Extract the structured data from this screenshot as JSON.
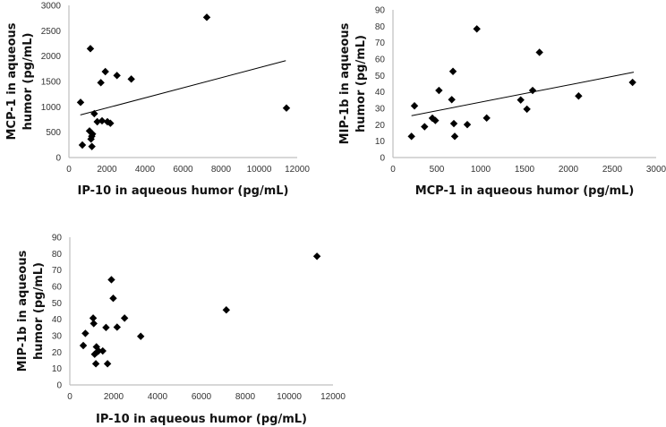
{
  "chart_data": [
    {
      "type": "scatter",
      "id": "chart1",
      "title": "",
      "xlabel": "IP-10 in aqueous humor  (pg/mL)",
      "ylabel_lines": [
        "MCP-1 in aqueous",
        "humor  (pg/mL)"
      ],
      "xlim": [
        0,
        12000
      ],
      "ylim": [
        0,
        3000
      ],
      "xticks": [
        0,
        2000,
        4000,
        6000,
        8000,
        10000,
        12000
      ],
      "yticks": [
        0,
        500,
        1000,
        1500,
        2000,
        2500,
        3000
      ],
      "marker": "diamond",
      "grid": false,
      "legend": "none",
      "trendline": {
        "x": [
          600,
          11400
        ],
        "y": [
          840,
          1910
        ]
      },
      "points": [
        {
          "x": 612,
          "y": 1088
        },
        {
          "x": 706,
          "y": 247
        },
        {
          "x": 1082,
          "y": 524
        },
        {
          "x": 1129,
          "y": 2147
        },
        {
          "x": 1161,
          "y": 365
        },
        {
          "x": 1208,
          "y": 218
        },
        {
          "x": 1200,
          "y": 420
        },
        {
          "x": 1239,
          "y": 465
        },
        {
          "x": 1333,
          "y": 865
        },
        {
          "x": 1490,
          "y": 706
        },
        {
          "x": 1678,
          "y": 1476
        },
        {
          "x": 1741,
          "y": 724
        },
        {
          "x": 1914,
          "y": 1694
        },
        {
          "x": 2024,
          "y": 706
        },
        {
          "x": 2180,
          "y": 676
        },
        {
          "x": 2525,
          "y": 1618
        },
        {
          "x": 3278,
          "y": 1547
        },
        {
          "x": 7247,
          "y": 2765
        },
        {
          "x": 11435,
          "y": 976
        }
      ]
    },
    {
      "type": "scatter",
      "id": "chart2",
      "title": "",
      "xlabel": "MCP-1 in aqueous humor  (pg/mL)",
      "ylabel_lines": [
        "MIP-1b in aqueous",
        "humor  (pg/mL)"
      ],
      "xlim": [
        0,
        3000
      ],
      "ylim": [
        0,
        90
      ],
      "xticks": [
        0,
        500,
        1000,
        1500,
        2000,
        2500,
        3000
      ],
      "yticks": [
        0,
        10,
        20,
        30,
        40,
        50,
        60,
        70,
        80,
        90
      ],
      "marker": "diamond",
      "grid": false,
      "legend": "none",
      "trendline": {
        "x": [
          211,
          2745
        ],
        "y": [
          25.5,
          52
        ]
      },
      "points": [
        {
          "x": 211,
          "y": 12.9
        },
        {
          "x": 245,
          "y": 31.5
        },
        {
          "x": 360,
          "y": 18.8
        },
        {
          "x": 449,
          "y": 24
        },
        {
          "x": 483,
          "y": 22.6
        },
        {
          "x": 524,
          "y": 40.9
        },
        {
          "x": 670,
          "y": 35.3
        },
        {
          "x": 684,
          "y": 52.5
        },
        {
          "x": 694,
          "y": 20.7
        },
        {
          "x": 704,
          "y": 12.9
        },
        {
          "x": 847,
          "y": 20.1
        },
        {
          "x": 956,
          "y": 78.4
        },
        {
          "x": 1068,
          "y": 24.1
        },
        {
          "x": 1456,
          "y": 35.1
        },
        {
          "x": 1527,
          "y": 29.5
        },
        {
          "x": 1592,
          "y": 40.9
        },
        {
          "x": 1670,
          "y": 64.1
        },
        {
          "x": 2116,
          "y": 37.5
        },
        {
          "x": 2731,
          "y": 45.8
        }
      ]
    },
    {
      "type": "scatter",
      "id": "chart3",
      "title": "",
      "xlabel": "IP-10 in aqueous humor  (pg/mL)",
      "ylabel_lines": [
        "MIP-1b in aqueous",
        "humor  (pg/mL)"
      ],
      "xlim": [
        0,
        12000
      ],
      "ylim": [
        0,
        90
      ],
      "xticks": [
        0,
        2000,
        4000,
        6000,
        8000,
        10000,
        12000
      ],
      "yticks": [
        0,
        10,
        20,
        30,
        40,
        50,
        60,
        70,
        80,
        90
      ],
      "marker": "diamond",
      "grid": false,
      "legend": "none",
      "trendline": null,
      "points": [
        {
          "x": 614,
          "y": 24
        },
        {
          "x": 709,
          "y": 31.4
        },
        {
          "x": 1064,
          "y": 40.7
        },
        {
          "x": 1091,
          "y": 37.4
        },
        {
          "x": 1132,
          "y": 18.7
        },
        {
          "x": 1187,
          "y": 12.9
        },
        {
          "x": 1214,
          "y": 23.2
        },
        {
          "x": 1241,
          "y": 20
        },
        {
          "x": 1310,
          "y": 20.7
        },
        {
          "x": 1500,
          "y": 20.7
        },
        {
          "x": 1650,
          "y": 35
        },
        {
          "x": 1719,
          "y": 12.9
        },
        {
          "x": 1896,
          "y": 64.1
        },
        {
          "x": 1978,
          "y": 52.8
        },
        {
          "x": 2155,
          "y": 35.2
        },
        {
          "x": 2496,
          "y": 40.7
        },
        {
          "x": 3233,
          "y": 29.6
        },
        {
          "x": 7135,
          "y": 45.7
        },
        {
          "x": 11269,
          "y": 78.4
        }
      ]
    }
  ]
}
